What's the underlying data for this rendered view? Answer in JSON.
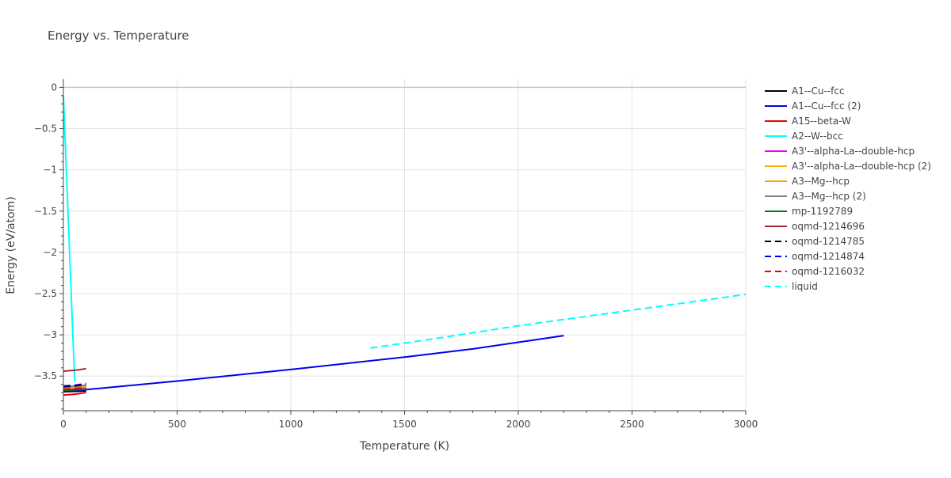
{
  "chart_data": {
    "type": "line",
    "title": "Energy vs. Temperature",
    "xlabel": "Temperature (K)",
    "ylabel": "Energy (eV/atom)",
    "xlim": [
      0,
      3000
    ],
    "ylim": [
      -3.92,
      0.1
    ],
    "x_ticks": [
      0,
      500,
      1000,
      1500,
      2000,
      2500,
      3000
    ],
    "x_tick_labels": [
      "0",
      "500",
      "1000",
      "1500",
      "2000",
      "2500",
      "3000"
    ],
    "y_ticks": [
      0,
      -0.5,
      -1,
      -1.5,
      -2,
      -2.5,
      -3,
      -3.5
    ],
    "y_tick_labels": [
      "0",
      "−0.5",
      "−1",
      "−1.5",
      "−2",
      "−2.5",
      "−3",
      "−3.5"
    ],
    "grid": true,
    "legend_position": "right",
    "series": [
      {
        "name": "A1--Cu--fcc",
        "color": "#000000",
        "dash": "solid",
        "x": [
          0,
          50,
          100
        ],
        "y": [
          -3.69,
          -3.685,
          -3.68
        ]
      },
      {
        "name": "A1--Cu--fcc (2)",
        "color": "#0000ee",
        "dash": "solid",
        "x": [
          0,
          500,
          1000,
          1500,
          1800,
          2000,
          2200
        ],
        "y": [
          -3.69,
          -3.56,
          -3.42,
          -3.27,
          -3.17,
          -3.09,
          -3.01
        ]
      },
      {
        "name": "A15--beta-W",
        "color": "#ee0000",
        "dash": "solid",
        "x": [
          0,
          50,
          100
        ],
        "y": [
          -3.73,
          -3.72,
          -3.7
        ]
      },
      {
        "name": "A2--W--bcc",
        "color": "#00ffff",
        "dash": "solid",
        "x": [
          0,
          20,
          40,
          50
        ],
        "y": [
          -0.1,
          -1.5,
          -2.9,
          -3.57
        ]
      },
      {
        "name": "A3'--alpha-La--double-hcp",
        "color": "#ee00ee",
        "dash": "solid",
        "x": [
          0,
          100
        ],
        "y": [
          -3.66,
          -3.64
        ]
      },
      {
        "name": "A3'--alpha-La--double-hcp (2)",
        "color": "#f0b400",
        "dash": "solid",
        "x": [
          0,
          100
        ],
        "y": [
          -3.65,
          -3.63
        ]
      },
      {
        "name": "A3--Mg--hcp",
        "color": "#ffa500",
        "dash": "solid",
        "x": [
          0,
          100
        ],
        "y": [
          -3.64,
          -3.62
        ]
      },
      {
        "name": "A3--Mg--hcp (2)",
        "color": "#808080",
        "dash": "solid",
        "x": [
          0,
          100
        ],
        "y": [
          -3.63,
          -3.61
        ]
      },
      {
        "name": "mp-1192789",
        "color": "#008000",
        "dash": "solid",
        "x": [
          0,
          100
        ],
        "y": [
          -3.67,
          -3.66
        ]
      },
      {
        "name": "oqmd-1214696",
        "color": "#a52a2a",
        "dash": "solid",
        "x": [
          0,
          50,
          100
        ],
        "y": [
          -3.44,
          -3.43,
          -3.41
        ]
      },
      {
        "name": "oqmd-1214785",
        "color": "#000000",
        "dash": "dash",
        "x": [
          0,
          50,
          100
        ],
        "y": [
          -3.63,
          -3.62,
          -3.6
        ]
      },
      {
        "name": "oqmd-1214874",
        "color": "#0000ee",
        "dash": "dash",
        "x": [
          0,
          50,
          100
        ],
        "y": [
          -3.62,
          -3.61,
          -3.59
        ]
      },
      {
        "name": "oqmd-1216032",
        "color": "#ee0000",
        "dash": "dash",
        "x": [
          0,
          50,
          100
        ],
        "y": [
          -3.66,
          -3.65,
          -3.64
        ]
      },
      {
        "name": "liquid",
        "color": "#00ffff",
        "dash": "dash",
        "x": [
          1350,
          1600,
          2000,
          2500,
          3000
        ],
        "y": [
          -3.16,
          -3.06,
          -2.89,
          -2.7,
          -2.51
        ]
      }
    ]
  }
}
